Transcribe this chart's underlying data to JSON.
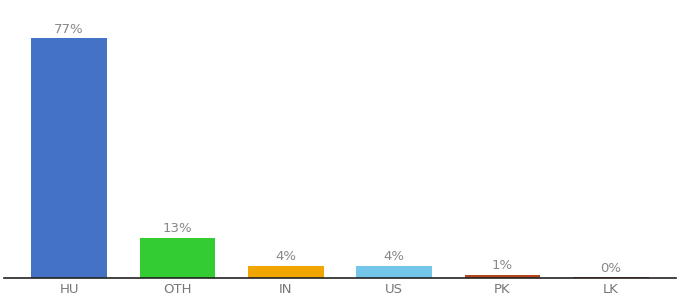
{
  "categories": [
    "HU",
    "OTH",
    "IN",
    "US",
    "PK",
    "LK"
  ],
  "values": [
    77,
    13,
    4,
    4,
    1,
    0.3
  ],
  "bar_colors": [
    "#4472c4",
    "#33cc33",
    "#f0a500",
    "#74c6e8",
    "#b5451b",
    "#b5451b"
  ],
  "labels": [
    "77%",
    "13%",
    "4%",
    "4%",
    "1%",
    "0%"
  ],
  "ylim": [
    0,
    88
  ],
  "background_color": "#ffffff",
  "tick_color": "#777777",
  "spine_color": "#222222",
  "bar_width": 0.7,
  "label_fontsize": 9.5,
  "tick_fontsize": 9.5
}
